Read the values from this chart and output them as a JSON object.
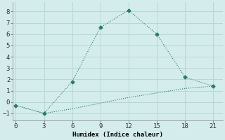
{
  "xlabel": "Humidex (Indice chaleur)",
  "background_color": "#d4ecec",
  "grid_color": "#b8d8d8",
  "line_color": "#2a7a70",
  "x_line1": [
    0,
    3,
    6,
    9,
    12,
    15,
    18,
    21
  ],
  "y_line1": [
    -0.3,
    -1.0,
    1.8,
    6.6,
    8.1,
    6.0,
    2.2,
    1.4
  ],
  "x_line2": [
    0,
    3,
    6,
    9,
    12,
    15,
    18,
    21
  ],
  "y_line2": [
    -0.3,
    -1.0,
    -0.6,
    -0.1,
    0.4,
    0.8,
    1.2,
    1.4
  ],
  "xticks": [
    0,
    3,
    6,
    9,
    12,
    15,
    18,
    21
  ],
  "yticks": [
    -1,
    0,
    1,
    2,
    3,
    4,
    5,
    6,
    7,
    8
  ],
  "ylim": [
    -1.6,
    8.8
  ],
  "xlim": [
    -0.3,
    22.0
  ]
}
